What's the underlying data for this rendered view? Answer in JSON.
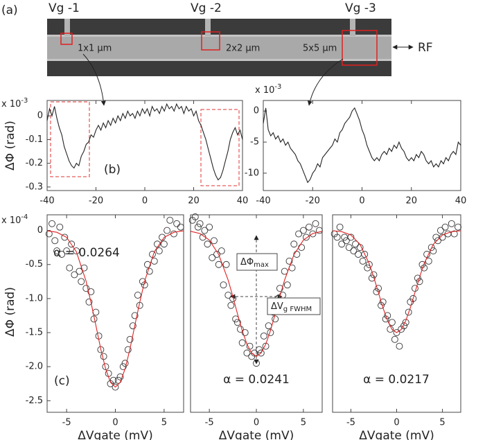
{
  "image_panel": {
    "panel_label": "(a)",
    "gates": [
      "Vg -1",
      "Vg -2",
      "Vg -3"
    ],
    "sizes": [
      "1x1 µm",
      "2x2 µm",
      "5x5 µm"
    ],
    "rf": "RF"
  },
  "chart_data": [
    {
      "type": "line",
      "ylabel": "ΔΦ (rad)",
      "multiplier": {
        "base": "x 10",
        "exp": "-3"
      },
      "panel_label": "(b)",
      "xlim": [
        -40,
        40
      ],
      "xticks": [
        -40,
        -20,
        0,
        20,
        40
      ],
      "ylim": [
        -0.315,
        0.065
      ],
      "yticks": [
        0,
        -0.1,
        -0.2,
        -0.3
      ],
      "color": "#222222",
      "x": [
        -40,
        -39,
        -38,
        -37,
        -36,
        -35,
        -34,
        -33,
        -32,
        -31,
        -30,
        -29,
        -28,
        -27,
        -26,
        -25,
        -24,
        -23,
        -22,
        -21,
        -20,
        -19,
        -18,
        -17,
        -16,
        -15,
        -14,
        -13,
        -12,
        -11,
        -10,
        -9,
        -8,
        -7,
        -6,
        -5,
        -4,
        -3,
        -2,
        -1,
        0,
        1,
        2,
        3,
        4,
        5,
        6,
        7,
        8,
        9,
        10,
        11,
        12,
        13,
        14,
        15,
        16,
        17,
        18,
        19,
        20,
        21,
        22,
        23,
        24,
        25,
        26,
        27,
        28,
        29,
        30,
        31,
        32,
        33,
        34,
        35,
        36,
        37,
        38,
        39,
        40
      ],
      "values": [
        -0.02,
        0.03,
        0.0,
        0.04,
        -0.01,
        -0.05,
        -0.08,
        -0.13,
        -0.16,
        -0.19,
        -0.21,
        -0.22,
        -0.2,
        -0.21,
        -0.17,
        -0.15,
        -0.12,
        -0.11,
        -0.08,
        -0.09,
        -0.06,
        -0.04,
        -0.06,
        -0.03,
        -0.05,
        -0.02,
        -0.04,
        -0.01,
        -0.03,
        0.0,
        -0.02,
        0.01,
        -0.01,
        0.02,
        0.0,
        0.01,
        -0.01,
        0.02,
        0.0,
        0.03,
        0.01,
        0.03,
        0.0,
        0.04,
        0.02,
        0.03,
        0.01,
        0.04,
        0.02,
        0.05,
        0.03,
        0.04,
        0.02,
        0.05,
        0.03,
        0.04,
        0.01,
        0.04,
        0.02,
        0.03,
        0.0,
        0.02,
        -0.02,
        -0.04,
        -0.07,
        -0.1,
        -0.14,
        -0.18,
        -0.22,
        -0.25,
        -0.27,
        -0.26,
        -0.23,
        -0.19,
        -0.15,
        -0.1,
        -0.07,
        -0.05,
        -0.08,
        -0.06,
        -0.1
      ]
    },
    {
      "type": "line",
      "multiplier": {
        "base": "x 10",
        "exp": "-3"
      },
      "xlim": [
        -40,
        40
      ],
      "xticks": [
        -40,
        -20,
        0,
        20,
        40
      ],
      "ylim": [
        -12.8,
        1.7
      ],
      "yticks": [
        0,
        -5,
        -10
      ],
      "color": "#222222",
      "x": [
        -40,
        -39,
        -38,
        -37,
        -36,
        -35,
        -34,
        -33,
        -32,
        -31,
        -30,
        -29,
        -28,
        -27,
        -26,
        -25,
        -24,
        -23,
        -22,
        -21,
        -20,
        -19,
        -18,
        -17,
        -16,
        -15,
        -14,
        -13,
        -12,
        -11,
        -10,
        -9,
        -8,
        -7,
        -6,
        -5,
        -4,
        -3,
        -2,
        -1,
        0,
        1,
        2,
        3,
        4,
        5,
        6,
        7,
        8,
        9,
        10,
        11,
        12,
        13,
        14,
        15,
        16,
        17,
        18,
        19,
        20,
        21,
        22,
        23,
        24,
        25,
        26,
        27,
        28,
        29,
        30,
        31,
        32,
        33,
        34,
        35,
        36,
        37,
        38,
        39,
        40
      ],
      "values": [
        -2,
        0.5,
        -3,
        -4,
        -3.5,
        -4.5,
        -4,
        -5,
        -4.5,
        -5.5,
        -5,
        -6,
        -6.5,
        -7,
        -8,
        -8.5,
        -9.5,
        -10.5,
        -11.5,
        -11,
        -10,
        -9.5,
        -8.5,
        -9,
        -7.5,
        -7,
        -6.5,
        -6,
        -5.5,
        -4.5,
        -5,
        -3.5,
        -3,
        -2,
        -1.5,
        -1,
        0,
        0.5,
        -0.5,
        -1.5,
        -3,
        -4,
        -5.5,
        -6.5,
        -7.5,
        -8,
        -7.5,
        -8,
        -7,
        -6.5,
        -7,
        -6,
        -6.5,
        -5.5,
        -6,
        -5,
        -6,
        -6.5,
        -7.5,
        -8,
        -7.5,
        -8,
        -7,
        -7.5,
        -6.5,
        -7,
        -8,
        -8.5,
        -8,
        -9,
        -8.5,
        -9,
        -8,
        -8.5,
        -7.5,
        -8,
        -7,
        -6.5,
        -7,
        -5,
        -5.5
      ]
    },
    {
      "type": "scatter",
      "ylabel": "ΔΦ (rad)",
      "multiplier": {
        "base": "x 10",
        "exp": "-4"
      },
      "panel_label": "(c)",
      "annotation": "α = 0.0264",
      "xlabel": "ΔVgate (mV)",
      "xlim": [
        -7,
        7
      ],
      "xticks": [
        -5,
        0,
        5
      ],
      "ylim": [
        -2.67,
        0.23
      ],
      "yticks": [
        0,
        -0.5,
        {
          "value": -1,
          "label": "-1.0"
        },
        -1.5,
        {
          "value": -2,
          "label": "-2.0"
        },
        -2.5
      ],
      "points": {
        "x": [
          -6.8,
          -6.5,
          -6.2,
          -6,
          -5.7,
          -5.5,
          -5.2,
          -5,
          -4.7,
          -4.5,
          -4.2,
          -4,
          -3.7,
          -3.5,
          -3.2,
          -3,
          -2.7,
          -2.5,
          -2.2,
          -2,
          -1.7,
          -1.5,
          -1.2,
          -1,
          -0.7,
          -0.5,
          -0.2,
          0,
          0.3,
          0.5,
          0.8,
          1,
          1.3,
          1.5,
          1.8,
          2,
          2.3,
          2.5,
          2.8,
          3,
          3.3,
          3.5,
          3.8,
          4,
          4.3,
          4.5,
          4.8,
          5,
          5.3,
          5.6,
          6,
          6.3,
          6.7
        ],
        "y": [
          -0.05,
          0.1,
          -0.15,
          -0.3,
          0.05,
          -0.35,
          -0.1,
          -0.3,
          -0.55,
          -0.2,
          -0.65,
          -0.3,
          -0.6,
          -0.75,
          -0.55,
          -0.85,
          -1.05,
          -0.9,
          -1.3,
          -1.2,
          -1.55,
          -1.75,
          -1.85,
          -2.0,
          -2.1,
          -2.25,
          -2.2,
          -2.3,
          -2.2,
          -2.15,
          -2.0,
          -1.95,
          -1.75,
          -1.6,
          -1.4,
          -1.25,
          -0.95,
          -1.1,
          -0.75,
          -0.8,
          -0.5,
          -0.6,
          -0.35,
          -0.45,
          -0.2,
          -0.3,
          -0.1,
          -0.2,
          0.0,
          0.15,
          -0.05,
          0.1,
          0.05
        ]
      },
      "fit": {
        "color": "#e02020",
        "x": [
          -7,
          -6,
          -5,
          -4,
          -3,
          -2.5,
          -2,
          -1.5,
          -1,
          -0.5,
          0,
          0.5,
          1,
          1.5,
          2,
          2.5,
          3,
          4,
          5,
          6,
          7
        ],
        "y": [
          -0.005,
          -0.026,
          -0.101,
          -0.311,
          -0.747,
          -1.055,
          -1.395,
          -1.74,
          -2.03,
          -2.23,
          -2.3,
          -2.23,
          -2.03,
          -1.74,
          -1.395,
          -1.055,
          -0.747,
          -0.311,
          -0.101,
          -0.026,
          -0.005
        ]
      }
    },
    {
      "type": "scatter",
      "annotation": "α = 0.0241",
      "xlabel": "ΔVgate (mV)",
      "boxes": [
        {
          "text": "ΔΦ",
          "sub": "max"
        },
        {
          "text": "ΔV",
          "sub": "g FWHM"
        }
      ],
      "xlim": [
        -7,
        7
      ],
      "xticks": [
        -5,
        0,
        5
      ],
      "ylim": [
        -2.67,
        0.23
      ],
      "points": {
        "x": [
          -6.8,
          -6.5,
          -6.2,
          -6,
          -5.7,
          -5.5,
          -5.2,
          -5,
          -4.7,
          -4.5,
          -4.2,
          -4,
          -3.7,
          -3.5,
          -3.2,
          -3,
          -2.7,
          -2.5,
          -2.2,
          -2,
          -1.7,
          -1.5,
          -1.2,
          -1,
          -0.7,
          -0.5,
          -0.2,
          0,
          0.3,
          0.5,
          0.8,
          1,
          1.3,
          1.5,
          1.8,
          2,
          2.3,
          2.5,
          2.8,
          3,
          3.3,
          3.5,
          3.8,
          4,
          4.3,
          4.5,
          4.8,
          5,
          5.3,
          5.6,
          6,
          6.3,
          6.7
        ],
        "y": [
          0.15,
          0.2,
          0.05,
          0.1,
          -0.1,
          0.0,
          -0.2,
          0.05,
          -0.4,
          -0.15,
          -0.35,
          -0.5,
          -0.3,
          -0.8,
          -0.5,
          -0.95,
          -1.1,
          -1.0,
          -1.3,
          -1.35,
          -1.45,
          -1.65,
          -1.5,
          -1.8,
          -1.7,
          -1.85,
          -1.8,
          -1.95,
          -1.75,
          -1.8,
          -1.55,
          -1.7,
          -1.4,
          -1.5,
          -1.2,
          -1.3,
          -1.0,
          -0.85,
          -0.95,
          -0.6,
          -0.8,
          -0.45,
          -0.55,
          -0.2,
          -0.35,
          -0.05,
          -0.25,
          0.0,
          -0.1,
          0.05,
          -0.05,
          0.1,
          0.0
        ]
      },
      "fit": {
        "color": "#e02020",
        "x": [
          -7,
          -6,
          -5,
          -4,
          -3,
          -2.5,
          -2,
          -1.5,
          -1,
          -0.5,
          0,
          0.5,
          1,
          1.5,
          2,
          2.5,
          3,
          4,
          5,
          6,
          7
        ],
        "y": [
          -0.012,
          -0.045,
          -0.14,
          -0.355,
          -0.73,
          -0.97,
          -1.23,
          -1.47,
          -1.67,
          -1.8,
          -1.85,
          -1.8,
          -1.67,
          -1.47,
          -1.23,
          -0.97,
          -0.73,
          -0.355,
          -0.14,
          -0.045,
          -0.012
        ]
      }
    },
    {
      "type": "scatter",
      "annotation": "α = 0.0217",
      "xlabel": "ΔVgate (mV)",
      "xlim": [
        -7,
        7
      ],
      "xticks": [
        -5,
        0,
        5
      ],
      "ylim": [
        -2.67,
        0.23
      ],
      "points": {
        "x": [
          -6.8,
          -6.5,
          -6.2,
          -6,
          -5.7,
          -5.5,
          -5.2,
          -5,
          -4.7,
          -4.5,
          -4.2,
          -4,
          -3.7,
          -3.5,
          -3.2,
          -3,
          -2.7,
          -2.5,
          -2.2,
          -2,
          -1.7,
          -1.5,
          -1.2,
          -1,
          -0.7,
          -0.5,
          -0.2,
          0,
          0.3,
          0.5,
          0.8,
          1,
          1.3,
          1.5,
          1.8,
          2,
          2.3,
          2.5,
          2.8,
          3,
          3.3,
          3.5,
          3.8,
          4,
          4.3,
          4.5,
          4.8,
          5,
          5.3,
          5.6,
          6,
          6.3,
          6.7
        ],
        "y": [
          -0.05,
          -0.1,
          0.05,
          -0.2,
          -0.1,
          -0.15,
          -0.25,
          -0.1,
          -0.3,
          -0.2,
          -0.35,
          -0.25,
          -0.45,
          -0.35,
          -0.55,
          -0.5,
          -0.7,
          -0.65,
          -0.9,
          -0.85,
          -1.1,
          -1.05,
          -1.3,
          -1.25,
          -1.45,
          -1.35,
          -1.6,
          -1.5,
          -1.7,
          -1.45,
          -1.4,
          -1.35,
          -1.2,
          -1.05,
          -1.0,
          -0.85,
          -0.7,
          -0.75,
          -0.5,
          -0.55,
          -0.35,
          -0.45,
          -0.25,
          -0.3,
          -0.1,
          -0.15,
          0.0,
          -0.1,
          0.05,
          -0.05,
          0.1,
          -0.05,
          0.05
        ]
      },
      "fit": {
        "color": "#e02020",
        "x": [
          -7,
          -6,
          -5,
          -4,
          -3,
          -2.5,
          -2,
          -1.5,
          -1,
          -0.5,
          0,
          0.5,
          1,
          1.5,
          2,
          2.5,
          3,
          4,
          5,
          6,
          7
        ],
        "y": [
          -0.004,
          -0.017,
          -0.066,
          -0.203,
          -0.487,
          -0.688,
          -0.91,
          -1.135,
          -1.324,
          -1.455,
          -1.5,
          -1.455,
          -1.324,
          -1.135,
          -0.91,
          -0.688,
          -0.487,
          -0.203,
          -0.066,
          -0.017,
          -0.004
        ]
      }
    }
  ]
}
